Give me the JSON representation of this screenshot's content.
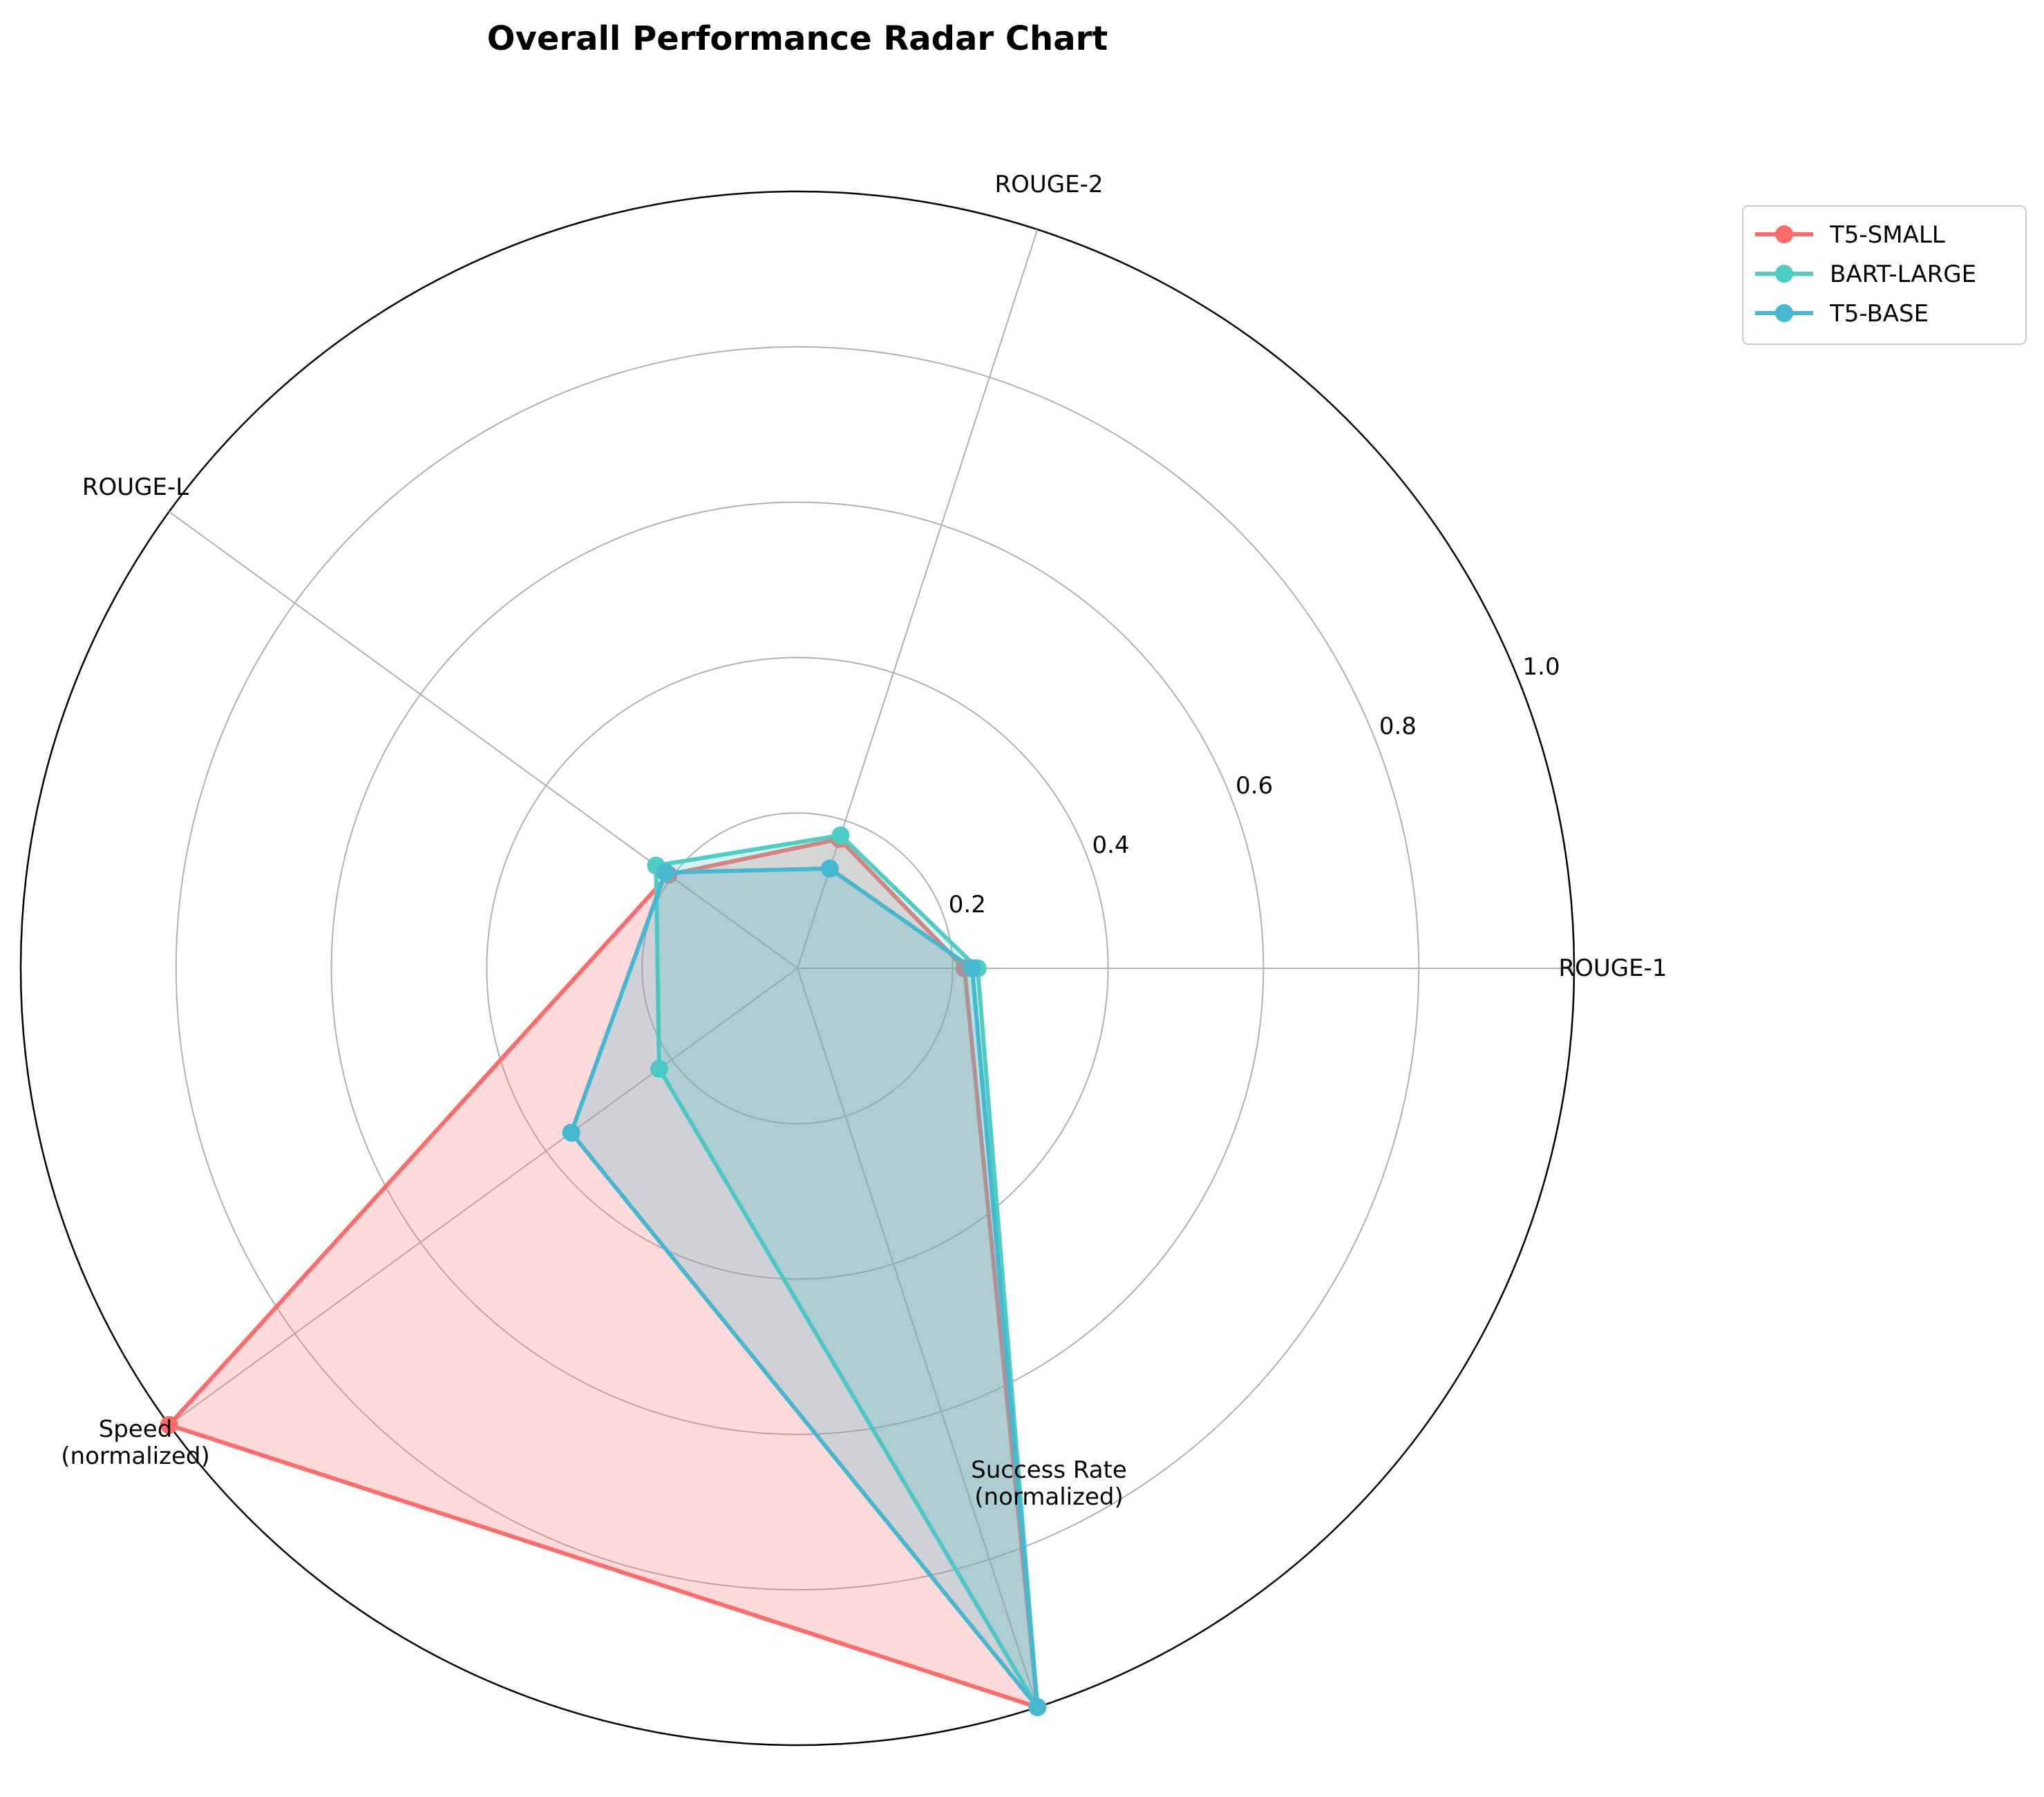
{
  "chart_data": {
    "type": "radar",
    "title": "Overall Performance Radar Chart",
    "axes": [
      "ROUGE-1",
      "ROUGE-2",
      "ROUGE-L",
      "Speed\n(normalized)",
      "Success Rate\n(normalized)"
    ],
    "rlim": [
      0,
      1.0
    ],
    "rticks": [
      0.2,
      0.4,
      0.6,
      0.8,
      1.0
    ],
    "rtick_labels": [
      "0.2",
      "0.4",
      "0.6",
      "0.8",
      "1.0"
    ],
    "grid": true,
    "legend_position": "top-right, outside",
    "series": [
      {
        "name": "T5-SMALL",
        "color": "#FF6B6B",
        "values": [
          0.215,
          0.175,
          0.205,
          1.0,
          1.0
        ]
      },
      {
        "name": "BART-LARGE",
        "color": "#4ECDC4",
        "values": [
          0.232,
          0.18,
          0.225,
          0.22,
          1.0
        ]
      },
      {
        "name": "T5-BASE",
        "color": "#45B7D1",
        "values": [
          0.225,
          0.135,
          0.21,
          0.36,
          1.0
        ]
      }
    ]
  }
}
